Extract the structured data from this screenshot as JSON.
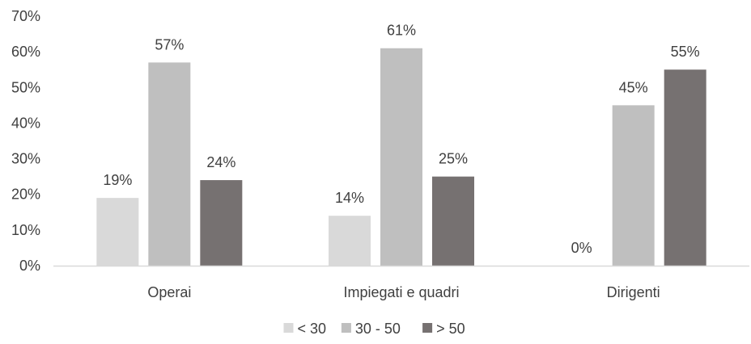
{
  "chart_data": {
    "type": "bar",
    "categories": [
      "Operai",
      "Impiegati e quadri",
      "Dirigenti"
    ],
    "series": [
      {
        "name": "< 30",
        "values": [
          19,
          14,
          0
        ],
        "labels": [
          "19%",
          "14%",
          "0%"
        ],
        "color": "#d9d9d9"
      },
      {
        "name": "30 - 50",
        "values": [
          57,
          61,
          45
        ],
        "labels": [
          "57%",
          "61%",
          "45%"
        ],
        "color": "#bfbfbf"
      },
      {
        "name": "> 50",
        "values": [
          24,
          25,
          55
        ],
        "labels": [
          "24%",
          "25%",
          "55%"
        ],
        "color": "#767171"
      }
    ],
    "yticks": [
      "0%",
      "10%",
      "20%",
      "30%",
      "40%",
      "50%",
      "60%",
      "70%"
    ],
    "ylim": [
      0,
      70
    ],
    "grid": false,
    "legend_position": "bottom",
    "axis_color": "#d9d9d9"
  }
}
